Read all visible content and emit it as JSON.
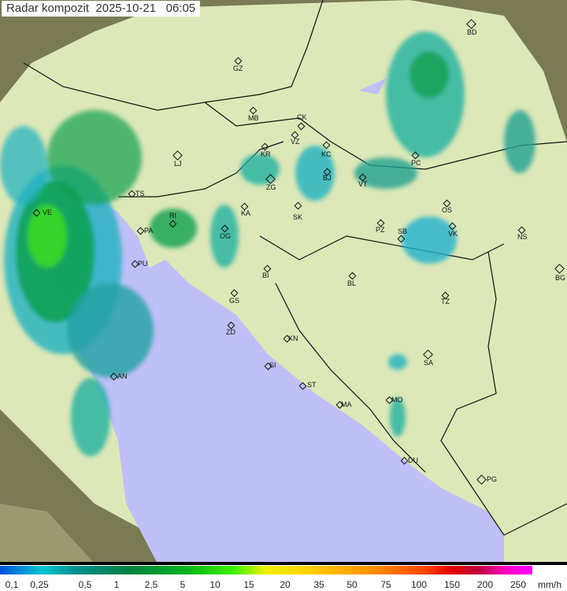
{
  "title": "Radar kompozit  2025-10-21   06:05",
  "colors": {
    "sea": "#c0c0f8",
    "land": "#dfeec0",
    "outside": "#8a8a60",
    "rain_light": "#20b0c0",
    "rain_mid": "#10a050",
    "rain_heavy": "#40e020"
  },
  "cities": [
    "GZ",
    "MB",
    "CK",
    "VZ",
    "KR",
    "KC",
    "ZG",
    "BJ",
    "VT",
    "PC",
    "OS",
    "PZ",
    "SB",
    "VK",
    "NS",
    "BG",
    "LJ",
    "TS",
    "VE",
    "RI",
    "PA",
    "KA",
    "SK",
    "OG",
    "PU",
    "BI",
    "BL",
    "GS",
    "TZ",
    "ZD",
    "KN",
    "SA",
    "SI",
    "AN",
    "ST",
    "MO",
    "MA",
    "DU",
    "PG",
    "BD"
  ],
  "legend": {
    "labels": [
      "0,1",
      "0,25",
      "0,5",
      "1",
      "2,5",
      "5",
      "10",
      "15",
      "20",
      "35",
      "50",
      "75",
      "100",
      "150",
      "200",
      "250"
    ],
    "unit": "mm/h"
  }
}
